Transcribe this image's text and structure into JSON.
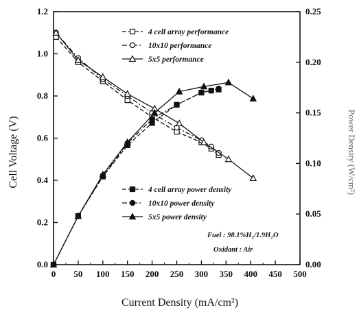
{
  "chart_data": {
    "type": "line",
    "xlabel": "Current Density (mA/cm²)",
    "ylabel": "Cell Voltage (V)",
    "ylabel_right": "Power Density (W/cm²)",
    "xlim": [
      0,
      500
    ],
    "ylim": [
      0.0,
      1.2
    ],
    "ylim_right": [
      0.0,
      0.25
    ],
    "x_ticks": [
      "0",
      "50",
      "100",
      "150",
      "200",
      "250",
      "300",
      "350",
      "400",
      "450",
      "500"
    ],
    "y_ticks": [
      "0.0",
      "0.2",
      "0.4",
      "0.6",
      "0.8",
      "1.0",
      "1.2"
    ],
    "y_ticks_right": [
      "0.00",
      "0.05",
      "0.10",
      "0.15",
      "0.20",
      "0.25"
    ],
    "grid": false,
    "voltage_series": [
      {
        "name": "4 cell array performance",
        "marker": "square-open",
        "dash": "dash",
        "x": [
          5,
          50,
          100,
          150,
          200,
          250,
          300,
          320,
          335
        ],
        "y": [
          1.08,
          0.96,
          0.87,
          0.78,
          0.7,
          0.63,
          0.58,
          0.55,
          0.52
        ]
      },
      {
        "name": "10x10 performance",
        "marker": "circle-open",
        "dash": "dashdot",
        "x": [
          5,
          50,
          100,
          150,
          200,
          250,
          300,
          320,
          335
        ],
        "y": [
          1.1,
          0.98,
          0.88,
          0.8,
          0.72,
          0.65,
          0.59,
          0.56,
          0.53
        ]
      },
      {
        "name": "5x5 performance",
        "marker": "triangle-open",
        "dash": "solid",
        "x": [
          5,
          50,
          100,
          150,
          205,
          255,
          305,
          355,
          405
        ],
        "y": [
          1.1,
          0.97,
          0.89,
          0.81,
          0.74,
          0.67,
          0.58,
          0.5,
          0.41
        ]
      }
    ],
    "power_series": [
      {
        "name": "4 cell array power density",
        "marker": "square-filled",
        "dash": "dash",
        "x": [
          0,
          50,
          100,
          150,
          200,
          250,
          300,
          320,
          335
        ],
        "y": [
          0.0,
          0.048,
          0.087,
          0.118,
          0.14,
          0.158,
          0.17,
          0.172,
          0.173
        ]
      },
      {
        "name": "10x10 power density",
        "marker": "circle-filled",
        "dash": "dashdot",
        "x": [
          0,
          50,
          100,
          150,
          200,
          250,
          300,
          320,
          335
        ],
        "y": [
          0.0,
          0.048,
          0.088,
          0.12,
          0.144,
          0.158,
          0.17,
          0.172,
          0.174
        ]
      },
      {
        "name": "5x5 power density",
        "marker": "triangle-filled",
        "dash": "solid",
        "x": [
          0,
          50,
          100,
          150,
          205,
          255,
          305,
          355,
          405
        ],
        "y": [
          0.0,
          0.048,
          0.089,
          0.121,
          0.15,
          0.171,
          0.176,
          0.18,
          0.164
        ]
      }
    ],
    "annotations": {
      "fuel": "Fuel : 98.1%H₂/1.9H₂O",
      "oxidant": "Oxidant : Air"
    }
  }
}
